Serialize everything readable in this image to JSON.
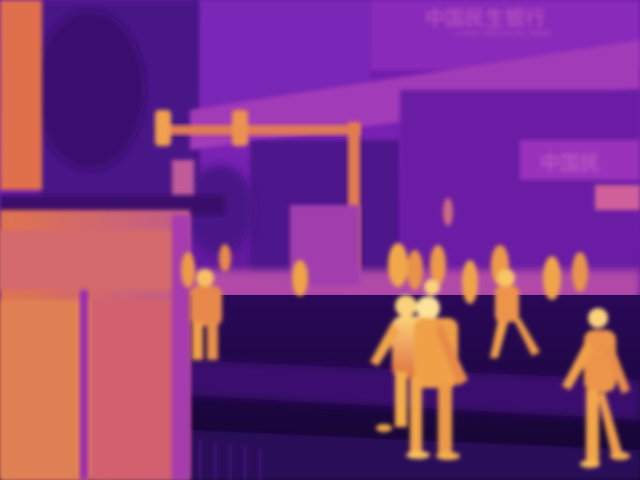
{
  "image": {
    "kind": "thermal-infrared-photo",
    "palette": "inferno",
    "colors": {
      "coldest": "#12052e",
      "cold": "#3a0a6e",
      "cool": "#6a1aa8",
      "mid": "#9a2cc0",
      "warm": "#d0508a",
      "warmer": "#ec7a46",
      "hot": "#f7b23a",
      "hottest": "#fde49a"
    }
  },
  "signs": {
    "top_building": "中国民生银行",
    "top_building_sub": "CHINA MINSHENG BANK",
    "right_building": "中国民"
  }
}
